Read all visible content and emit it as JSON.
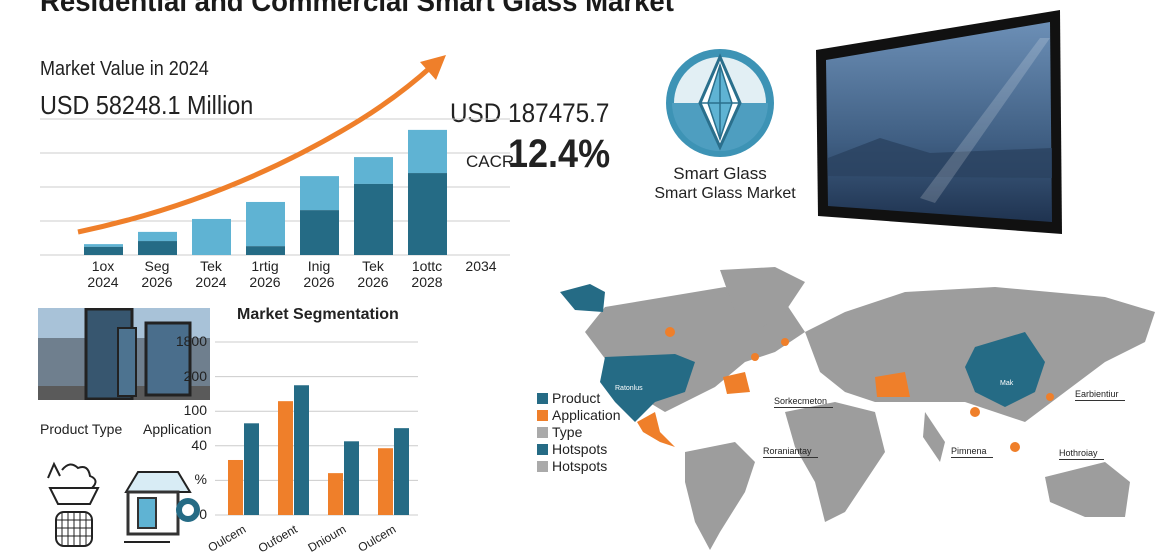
{
  "title": "Residential and Commercial Smart Glass Market",
  "market_value_label": "Market Value in 2024",
  "market_value": "USD 58248.1 Million",
  "forecast_value": "USD 187475.7",
  "cagr_label": "CACR",
  "cagr_value": "12.4%",
  "brand": {
    "line1": "Smart Glass",
    "line2": "Smart Glass Market"
  },
  "product_type_label": "Product Type",
  "application_label": "Application",
  "colors": {
    "dark_blue": "#256b85",
    "light_blue": "#5fb3d3",
    "orange": "#ef7f2a",
    "gray": "#9a9a9a"
  },
  "chart_data": [
    {
      "type": "bar",
      "stacked": true,
      "grid": true,
      "categories": [
        "1ox\n2024",
        "Seg\n2026",
        "Tek\n2024",
        "1rtig\n2026",
        "Inig\n2026",
        "Tek\n2026",
        "1ottc\n2028",
        "2034"
      ],
      "series": [
        {
          "values": [
            0.24,
            0.41,
            0,
            0.26,
            1.32,
            2.09,
            2.41,
            null
          ]
        },
        {
          "values": [
            0.08,
            0.27,
            1.06,
            1.3,
            1.0,
            0.79,
            1.27,
            null
          ]
        }
      ],
      "trend_arrow": "orange, rising"
    },
    {
      "type": "bar",
      "title": "Market Segmentation",
      "grid": true,
      "y_ticks": [
        "0",
        "%",
        "40",
        "100",
        "200",
        "1800"
      ],
      "categories": [
        "Oulcem",
        "Oufoent",
        "Dnioum",
        "Oulcem"
      ],
      "series": [
        {
          "color": "#ef7f2a",
          "values": [
            1.59,
            3.29,
            1.21,
            1.93
          ]
        },
        {
          "color": "#256b85",
          "values": [
            2.65,
            3.75,
            2.13,
            2.51
          ]
        }
      ],
      "values_unit": "tick steps (axis labels non-linear)",
      "legend": {
        "placement": "right",
        "entries": [
          {
            "label": "Product",
            "color": "#256b85"
          },
          {
            "label": "Application",
            "color": "#ef7f2a"
          },
          {
            "label": "Type",
            "color": "#aaaaaa"
          },
          {
            "label": "Hotspots",
            "color": "#256b85"
          },
          {
            "label": "Hotspots",
            "color": "#aaaaaa"
          }
        ]
      }
    }
  ],
  "map": {
    "labels": [
      "Ratonlus",
      "Sorkecmeton",
      "Roraniantay",
      "Mak",
      "Earbientiur",
      "Pimnena",
      "Hothroiay"
    ]
  }
}
